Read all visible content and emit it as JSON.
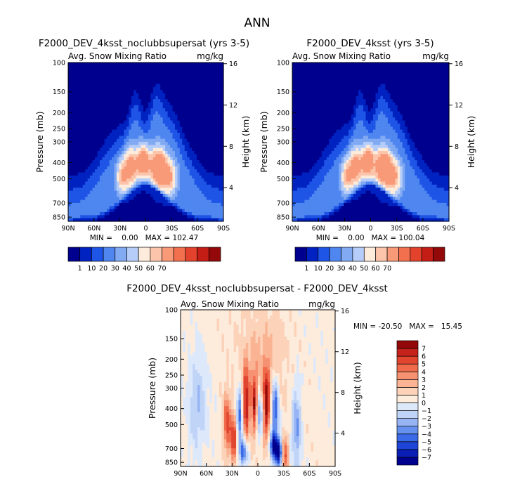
{
  "chart_data": {
    "type": "heatmap",
    "title": "ANN",
    "panels": [
      {
        "id": "p1",
        "subtitle": "F2000_DEV_4ksst_noclubbsupersat (yrs 3-5)",
        "variable_label": "Avg. Snow Mixing Ratio",
        "units_label": "mg/kg",
        "min_text": "MIN =    0.00   MAX = 102.47",
        "min": 0.0,
        "max": 102.47,
        "core_scale": 1.0
      },
      {
        "id": "p2",
        "subtitle": "F2000_DEV_4ksst (yrs 3-5)",
        "variable_label": "Avg. Snow Mixing Ratio",
        "units_label": "mg/kg",
        "min_text": "MIN =    0.00   MAX = 100.04",
        "min": 0.0,
        "max": 100.04,
        "core_scale": 0.98
      },
      {
        "id": "diff",
        "subtitle": "F2000_DEV_4ksst_noclubbsupersat - F2000_DEV_4ksst",
        "variable_label": "Avg. Snow Mixing Ratio",
        "units_label": "mg/kg",
        "min_text": "MIN = -20.50   MAX =   15.45",
        "min": -20.5,
        "max": 15.45
      }
    ],
    "x_axis": {
      "range": [
        90,
        -90
      ],
      "ticks": [
        90,
        60,
        30,
        0,
        -30,
        -60,
        -90
      ],
      "tick_labels": [
        "90N",
        "60N",
        "30N",
        "0",
        "30S",
        "60S",
        "90S"
      ]
    },
    "y_axis_left": {
      "label": "Pressure (mb)",
      "range_mb": [
        100,
        900
      ],
      "ticks": [
        100,
        150,
        200,
        250,
        300,
        400,
        500,
        700,
        850
      ],
      "tick_labels": [
        "100",
        "150",
        "200",
        "250",
        "300",
        "400",
        "500",
        "700",
        "850"
      ]
    },
    "y_axis_right": {
      "label": "Height (km)",
      "ticks_km": [
        16,
        12,
        8,
        4
      ],
      "tick_labels": [
        "16",
        "12",
        "8",
        "4"
      ]
    },
    "colorbar_main": {
      "orientation": "horizontal",
      "levels": [
        1,
        10,
        20,
        30,
        40,
        50,
        60,
        70
      ],
      "tick_labels": [
        "1",
        "10",
        "20",
        "30",
        "40",
        "50",
        "60",
        "70"
      ],
      "colors": [
        "#00008f",
        "#0022c0",
        "#1f55e6",
        "#4f86ef",
        "#82aaf3",
        "#b5cdf8",
        "#fdebdb",
        "#fcc5ab",
        "#f89a78",
        "#f2704e",
        "#e3422c",
        "#c41d15",
        "#930808"
      ]
    },
    "colorbar_diff": {
      "orientation": "vertical",
      "levels": [
        -7,
        -6,
        -5,
        -4,
        -3,
        -2,
        -1,
        0,
        1,
        2,
        3,
        4,
        5,
        6,
        7
      ],
      "tick_labels": [
        "−7",
        "−6",
        "−5",
        "−4",
        "−3",
        "−2",
        "−1",
        "0",
        "1",
        "2",
        "3",
        "4",
        "5",
        "6",
        "7"
      ],
      "colors": [
        "#00008f",
        "#0a1db5",
        "#1f45d8",
        "#3a6ae8",
        "#6690ee",
        "#97b4f4",
        "#c0d4f8",
        "#dde9fb",
        "#fdebdb",
        "#fcd2b9",
        "#fab494",
        "#f69172",
        "#ef6b4b",
        "#e14530",
        "#c4221a",
        "#930808"
      ]
    }
  }
}
